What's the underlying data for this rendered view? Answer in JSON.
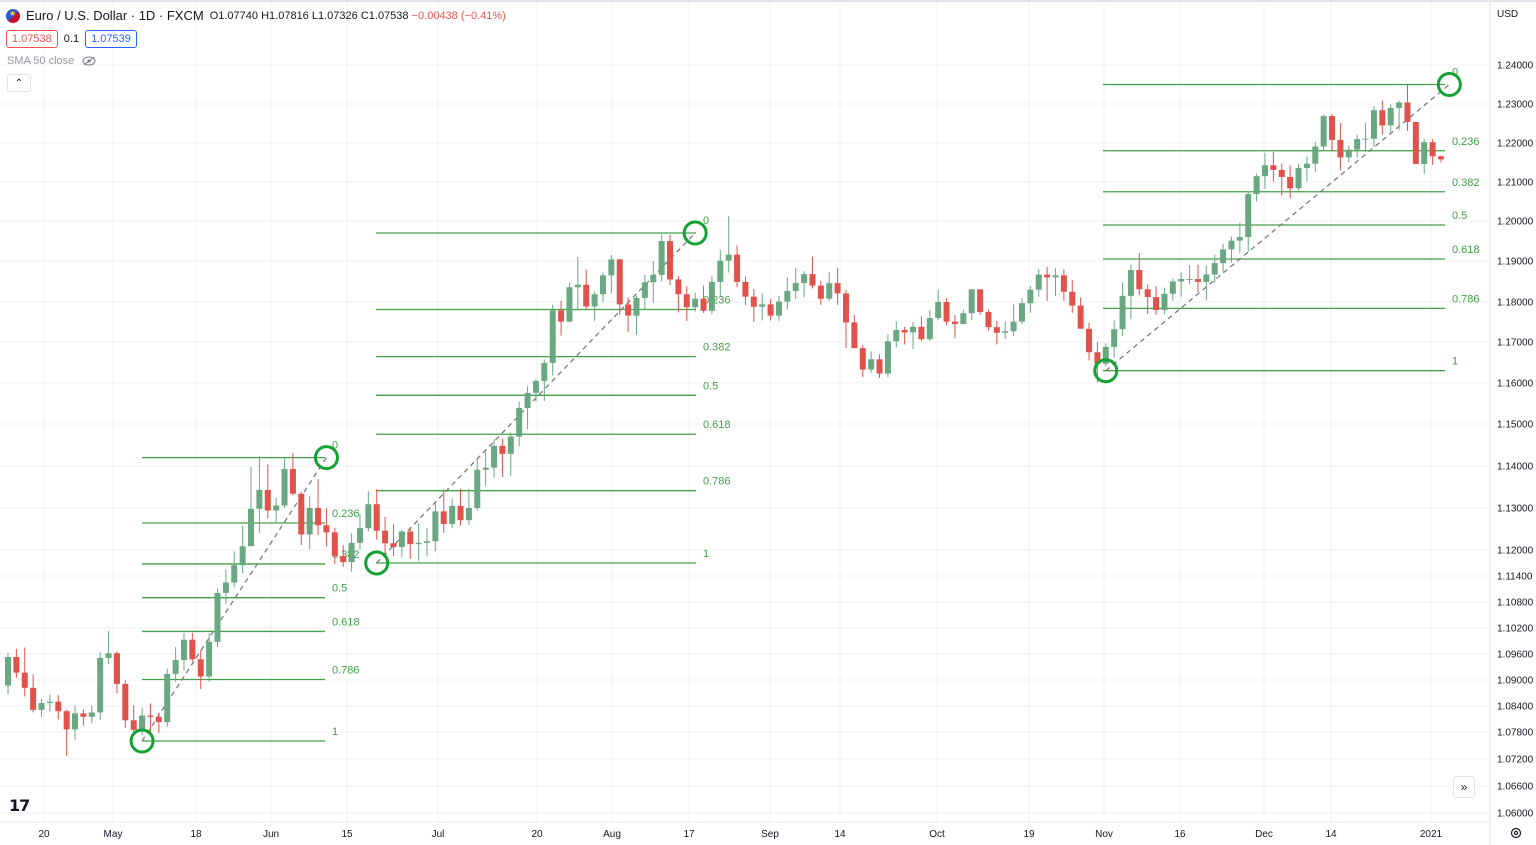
{
  "header": {
    "symbol": "Euro / U.S. Dollar · 1D · FXCM",
    "open": "O1.07740",
    "high": "H1.07816",
    "low": "L1.07326",
    "close": "C1.07538",
    "change": "−0.00438 (−0.41%)",
    "sell_price": "1.07538",
    "spread": "0.1",
    "buy_price": "1.07539",
    "indicator": "SMA 50 close",
    "currency": "USD",
    "logo": "17"
  },
  "colors": {
    "up": "#6aa882",
    "down": "#e0524c",
    "fib": "#43a047",
    "circle": "#16a135",
    "grid": "#eef0f3"
  },
  "chart_data": {
    "type": "candlestick",
    "price_axis": [
      "1.24000",
      "1.23000",
      "1.22000",
      "1.21000",
      "1.20000",
      "1.19000",
      "1.18000",
      "1.17000",
      "1.16000",
      "1.15000",
      "1.14000",
      "1.13000",
      "1.12000",
      "1.11400",
      "1.10800",
      "1.10200",
      "1.09600",
      "1.09000",
      "1.08400",
      "1.07800",
      "1.07200",
      "1.06600",
      "1.06000"
    ],
    "time_axis": [
      "20",
      "May",
      "18",
      "Jun",
      "15",
      "Jul",
      "20",
      "Aug",
      "17",
      "Sep",
      "14",
      "Oct",
      "19",
      "Nov",
      "16",
      "Dec",
      "14",
      "2021"
    ],
    "fib_levels": [
      "0",
      "0.236",
      "0.382",
      "0.5",
      "0.618",
      "0.786",
      "1"
    ],
    "fib_retracements": [
      {
        "from": "1.07600",
        "to": "1.14200"
      },
      {
        "from": "1.11700",
        "to": "1.19700"
      },
      {
        "from": "1.16300",
        "to": "1.23500"
      }
    ],
    "candles": [
      [
        1.0887,
        1.0963,
        1.0867,
        1.0953
      ],
      [
        1.0953,
        1.0972,
        1.0905,
        1.0917
      ],
      [
        1.0917,
        1.0975,
        1.0862,
        1.0882
      ],
      [
        1.0882,
        1.0913,
        1.0825,
        1.0831
      ],
      [
        1.0831,
        1.0856,
        1.0815,
        1.0847
      ],
      [
        1.0847,
        1.0866,
        1.0827,
        1.085
      ],
      [
        1.085,
        1.0865,
        1.0809,
        1.0828
      ],
      [
        1.0828,
        1.0832,
        1.0727,
        1.0786
      ],
      [
        1.0786,
        1.0841,
        1.0762,
        1.0823
      ],
      [
        1.0823,
        1.0832,
        1.0795,
        1.0815
      ],
      [
        1.0815,
        1.084,
        1.08,
        1.0825
      ],
      [
        1.0825,
        1.0964,
        1.0808,
        1.0951
      ],
      [
        1.0951,
        1.1013,
        1.0937,
        1.0962
      ],
      [
        1.0962,
        1.0966,
        1.0869,
        1.0891
      ],
      [
        1.0891,
        1.0899,
        1.0789,
        1.0807
      ],
      [
        1.0807,
        1.0841,
        1.0775,
        1.0785
      ],
      [
        1.0785,
        1.0836,
        1.0773,
        1.0818
      ],
      [
        1.0818,
        1.0846,
        1.0779,
        1.0815
      ],
      [
        1.0815,
        1.0825,
        1.0778,
        1.0803
      ],
      [
        1.0803,
        1.0926,
        1.0792,
        1.0914
      ],
      [
        1.0914,
        1.0976,
        1.0896,
        1.0946
      ],
      [
        1.0946,
        1.1008,
        1.0922,
        1.0993
      ],
      [
        1.0993,
        1.1009,
        1.0943,
        1.0948
      ],
      [
        1.0948,
        1.0969,
        1.0879,
        1.0908
      ],
      [
        1.0908,
        1.1008,
        1.0896,
        1.0988
      ],
      [
        1.0988,
        1.1111,
        1.0976,
        1.1101
      ],
      [
        1.1101,
        1.1155,
        1.1075,
        1.1125
      ],
      [
        1.1125,
        1.1197,
        1.1114,
        1.1165
      ],
      [
        1.1165,
        1.1258,
        1.1146,
        1.1209
      ],
      [
        1.1209,
        1.1397,
        1.1211,
        1.1298
      ],
      [
        1.1298,
        1.1423,
        1.1241,
        1.1343
      ],
      [
        1.1343,
        1.1404,
        1.1275,
        1.1294
      ],
      [
        1.1294,
        1.1324,
        1.1263,
        1.1306
      ],
      [
        1.1306,
        1.142,
        1.13,
        1.1393
      ],
      [
        1.1393,
        1.1431,
        1.133,
        1.1334
      ],
      [
        1.1334,
        1.1339,
        1.1212,
        1.1237
      ],
      [
        1.1237,
        1.1328,
        1.1202,
        1.13
      ],
      [
        1.13,
        1.1369,
        1.1236,
        1.1259
      ],
      [
        1.1259,
        1.1299,
        1.1208,
        1.1242
      ],
      [
        1.1242,
        1.1253,
        1.1168,
        1.1186
      ],
      [
        1.1186,
        1.1212,
        1.1161,
        1.1172
      ],
      [
        1.1172,
        1.124,
        1.115,
        1.1217
      ],
      [
        1.1217,
        1.1285,
        1.1201,
        1.1252
      ],
      [
        1.1252,
        1.134,
        1.1244,
        1.1309
      ],
      [
        1.1309,
        1.1345,
        1.1225,
        1.1246
      ],
      [
        1.1246,
        1.1279,
        1.1187,
        1.1216
      ],
      [
        1.1216,
        1.1261,
        1.1186,
        1.1207
      ],
      [
        1.1207,
        1.1248,
        1.1183,
        1.1244
      ],
      [
        1.1244,
        1.1253,
        1.118,
        1.1214
      ],
      [
        1.1214,
        1.1264,
        1.1175,
        1.1217
      ],
      [
        1.1217,
        1.1253,
        1.1185,
        1.1221
      ],
      [
        1.1221,
        1.1312,
        1.1197,
        1.1292
      ],
      [
        1.1292,
        1.1344,
        1.1241,
        1.1262
      ],
      [
        1.1262,
        1.1323,
        1.1252,
        1.1305
      ],
      [
        1.1305,
        1.1346,
        1.1258,
        1.1271
      ],
      [
        1.1271,
        1.1346,
        1.126,
        1.13
      ],
      [
        1.13,
        1.1416,
        1.1294,
        1.1391
      ],
      [
        1.1391,
        1.1434,
        1.1352,
        1.1396
      ],
      [
        1.1396,
        1.1463,
        1.1372,
        1.1448
      ],
      [
        1.1448,
        1.1465,
        1.1374,
        1.1429
      ],
      [
        1.1429,
        1.148,
        1.1377,
        1.147
      ],
      [
        1.147,
        1.1555,
        1.1447,
        1.1539
      ],
      [
        1.1539,
        1.1592,
        1.1488,
        1.1576
      ],
      [
        1.1576,
        1.1609,
        1.1555,
        1.1605
      ],
      [
        1.1605,
        1.1657,
        1.1556,
        1.1649
      ],
      [
        1.1649,
        1.1793,
        1.1618,
        1.1779
      ],
      [
        1.1779,
        1.1803,
        1.1716,
        1.1751
      ],
      [
        1.1751,
        1.1847,
        1.1749,
        1.1836
      ],
      [
        1.1836,
        1.191,
        1.1778,
        1.1842
      ],
      [
        1.1842,
        1.1879,
        1.178,
        1.1789
      ],
      [
        1.1789,
        1.1825,
        1.1753,
        1.1819
      ],
      [
        1.1819,
        1.1872,
        1.18,
        1.1865
      ],
      [
        1.1865,
        1.1915,
        1.1821,
        1.1904
      ],
      [
        1.1904,
        1.1905,
        1.1768,
        1.1794
      ],
      [
        1.1794,
        1.1811,
        1.1725,
        1.1766
      ],
      [
        1.1766,
        1.1815,
        1.1718,
        1.181
      ],
      [
        1.181,
        1.1866,
        1.1782,
        1.1848
      ],
      [
        1.1848,
        1.19,
        1.1798,
        1.1866
      ],
      [
        1.1866,
        1.1966,
        1.185,
        1.195
      ],
      [
        1.195,
        1.1966,
        1.1841,
        1.1855
      ],
      [
        1.1855,
        1.1863,
        1.1774,
        1.1819
      ],
      [
        1.1819,
        1.1839,
        1.1752,
        1.1787
      ],
      [
        1.1787,
        1.1823,
        1.1776,
        1.1808
      ],
      [
        1.1808,
        1.184,
        1.1773,
        1.1778
      ],
      [
        1.1778,
        1.1863,
        1.177,
        1.1849
      ],
      [
        1.1849,
        1.1928,
        1.1814,
        1.1901
      ],
      [
        1.1901,
        1.2012,
        1.1872,
        1.1916
      ],
      [
        1.1916,
        1.1939,
        1.1836,
        1.1849
      ],
      [
        1.1849,
        1.1862,
        1.1792,
        1.1813
      ],
      [
        1.1813,
        1.1832,
        1.175,
        1.1788
      ],
      [
        1.1788,
        1.1821,
        1.1754,
        1.1794
      ],
      [
        1.1794,
        1.1807,
        1.1754,
        1.1766
      ],
      [
        1.1766,
        1.1815,
        1.1753,
        1.1801
      ],
      [
        1.1801,
        1.186,
        1.1782,
        1.1827
      ],
      [
        1.1827,
        1.1883,
        1.1807,
        1.1846
      ],
      [
        1.1846,
        1.1875,
        1.1811,
        1.1868
      ],
      [
        1.1868,
        1.1911,
        1.1833,
        1.184
      ],
      [
        1.184,
        1.1852,
        1.1793,
        1.1808
      ],
      [
        1.1808,
        1.1873,
        1.1803,
        1.1846
      ],
      [
        1.1846,
        1.1884,
        1.1793,
        1.1821
      ],
      [
        1.1821,
        1.183,
        1.1685,
        1.1749
      ],
      [
        1.1749,
        1.1767,
        1.1692,
        1.1685
      ],
      [
        1.1685,
        1.1693,
        1.1614,
        1.1633
      ],
      [
        1.1633,
        1.1677,
        1.1625,
        1.1658
      ],
      [
        1.1658,
        1.167,
        1.1612,
        1.1623
      ],
      [
        1.1623,
        1.1719,
        1.1614,
        1.1702
      ],
      [
        1.1702,
        1.1752,
        1.1687,
        1.173
      ],
      [
        1.173,
        1.1738,
        1.1694,
        1.1724
      ],
      [
        1.1724,
        1.175,
        1.1683,
        1.1738
      ],
      [
        1.1738,
        1.1764,
        1.1702,
        1.1707
      ],
      [
        1.1707,
        1.178,
        1.1702,
        1.176
      ],
      [
        1.176,
        1.183,
        1.1755,
        1.18
      ],
      [
        1.18,
        1.1809,
        1.1743,
        1.1751
      ],
      [
        1.1751,
        1.1767,
        1.171,
        1.1745
      ],
      [
        1.1745,
        1.1781,
        1.1744,
        1.1772
      ],
      [
        1.1772,
        1.1832,
        1.1755,
        1.1831
      ],
      [
        1.1831,
        1.1825,
        1.1768,
        1.1775
      ],
      [
        1.1775,
        1.1781,
        1.1728,
        1.1737
      ],
      [
        1.1737,
        1.1753,
        1.1694,
        1.1723
      ],
      [
        1.1723,
        1.1752,
        1.1707,
        1.1727
      ],
      [
        1.1727,
        1.1794,
        1.1715,
        1.1751
      ],
      [
        1.1751,
        1.1809,
        1.1745,
        1.1797
      ],
      [
        1.1797,
        1.1839,
        1.1773,
        1.183
      ],
      [
        1.183,
        1.188,
        1.1813,
        1.1867
      ],
      [
        1.1867,
        1.1886,
        1.1802,
        1.186
      ],
      [
        1.186,
        1.1882,
        1.1815,
        1.1865
      ],
      [
        1.1865,
        1.188,
        1.1803,
        1.1825
      ],
      [
        1.1825,
        1.1853,
        1.1773,
        1.1791
      ],
      [
        1.1791,
        1.1811,
        1.1734,
        1.1733
      ],
      [
        1.1733,
        1.1748,
        1.1655,
        1.1675
      ],
      [
        1.1675,
        1.17,
        1.1602,
        1.1647
      ],
      [
        1.1647,
        1.1697,
        1.1641,
        1.1688
      ],
      [
        1.1688,
        1.1754,
        1.1662,
        1.1732
      ],
      [
        1.1732,
        1.1848,
        1.1715,
        1.1815
      ],
      [
        1.1815,
        1.1891,
        1.1757,
        1.1878
      ],
      [
        1.1878,
        1.192,
        1.1816,
        1.1831
      ],
      [
        1.1831,
        1.1843,
        1.177,
        1.1812
      ],
      [
        1.1812,
        1.1839,
        1.1768,
        1.178
      ],
      [
        1.178,
        1.1835,
        1.1769,
        1.182
      ],
      [
        1.182,
        1.1858,
        1.1803,
        1.185
      ],
      [
        1.185,
        1.1872,
        1.1813,
        1.1856
      ],
      [
        1.1856,
        1.189,
        1.1843,
        1.1856
      ],
      [
        1.1856,
        1.1891,
        1.1824,
        1.1849
      ],
      [
        1.1849,
        1.1888,
        1.1804,
        1.1867
      ],
      [
        1.1867,
        1.1916,
        1.1847,
        1.1895
      ],
      [
        1.1895,
        1.1943,
        1.1873,
        1.1929
      ],
      [
        1.1929,
        1.1961,
        1.1897,
        1.1951
      ],
      [
        1.1951,
        1.1996,
        1.192,
        1.196
      ],
      [
        1.196,
        1.2076,
        1.1923,
        1.2069
      ],
      [
        1.2069,
        1.2121,
        1.205,
        1.2115
      ],
      [
        1.2115,
        1.2175,
        1.2082,
        1.2143
      ],
      [
        1.2143,
        1.2177,
        1.2101,
        1.2131
      ],
      [
        1.2131,
        1.2148,
        1.2066,
        1.2113
      ],
      [
        1.2113,
        1.2143,
        1.2058,
        1.2084
      ],
      [
        1.2084,
        1.2146,
        1.2078,
        1.2136
      ],
      [
        1.2136,
        1.2165,
        1.2102,
        1.2147
      ],
      [
        1.2147,
        1.2203,
        1.2126,
        1.2191
      ],
      [
        1.2191,
        1.2273,
        1.2181,
        1.2269
      ],
      [
        1.2269,
        1.2274,
        1.218,
        1.2208
      ],
      [
        1.2208,
        1.2251,
        1.2131,
        1.2163
      ],
      [
        1.2163,
        1.2193,
        1.215,
        1.2183
      ],
      [
        1.2183,
        1.2222,
        1.2163,
        1.221
      ],
      [
        1.221,
        1.2251,
        1.2177,
        1.2211
      ],
      [
        1.2211,
        1.2294,
        1.219,
        1.2284
      ],
      [
        1.2284,
        1.2309,
        1.2222,
        1.2245
      ],
      [
        1.2245,
        1.2299,
        1.2227,
        1.229
      ],
      [
        1.229,
        1.2309,
        1.2234,
        1.2304
      ],
      [
        1.2304,
        1.2349,
        1.2231,
        1.2254
      ],
      [
        1.2254,
        1.2245,
        1.2146,
        1.2146
      ],
      [
        1.2146,
        1.221,
        1.2121,
        1.2202
      ],
      [
        1.2202,
        1.221,
        1.2144,
        1.2166
      ],
      [
        1.2166,
        1.2168,
        1.215,
        1.2158
      ]
    ]
  }
}
